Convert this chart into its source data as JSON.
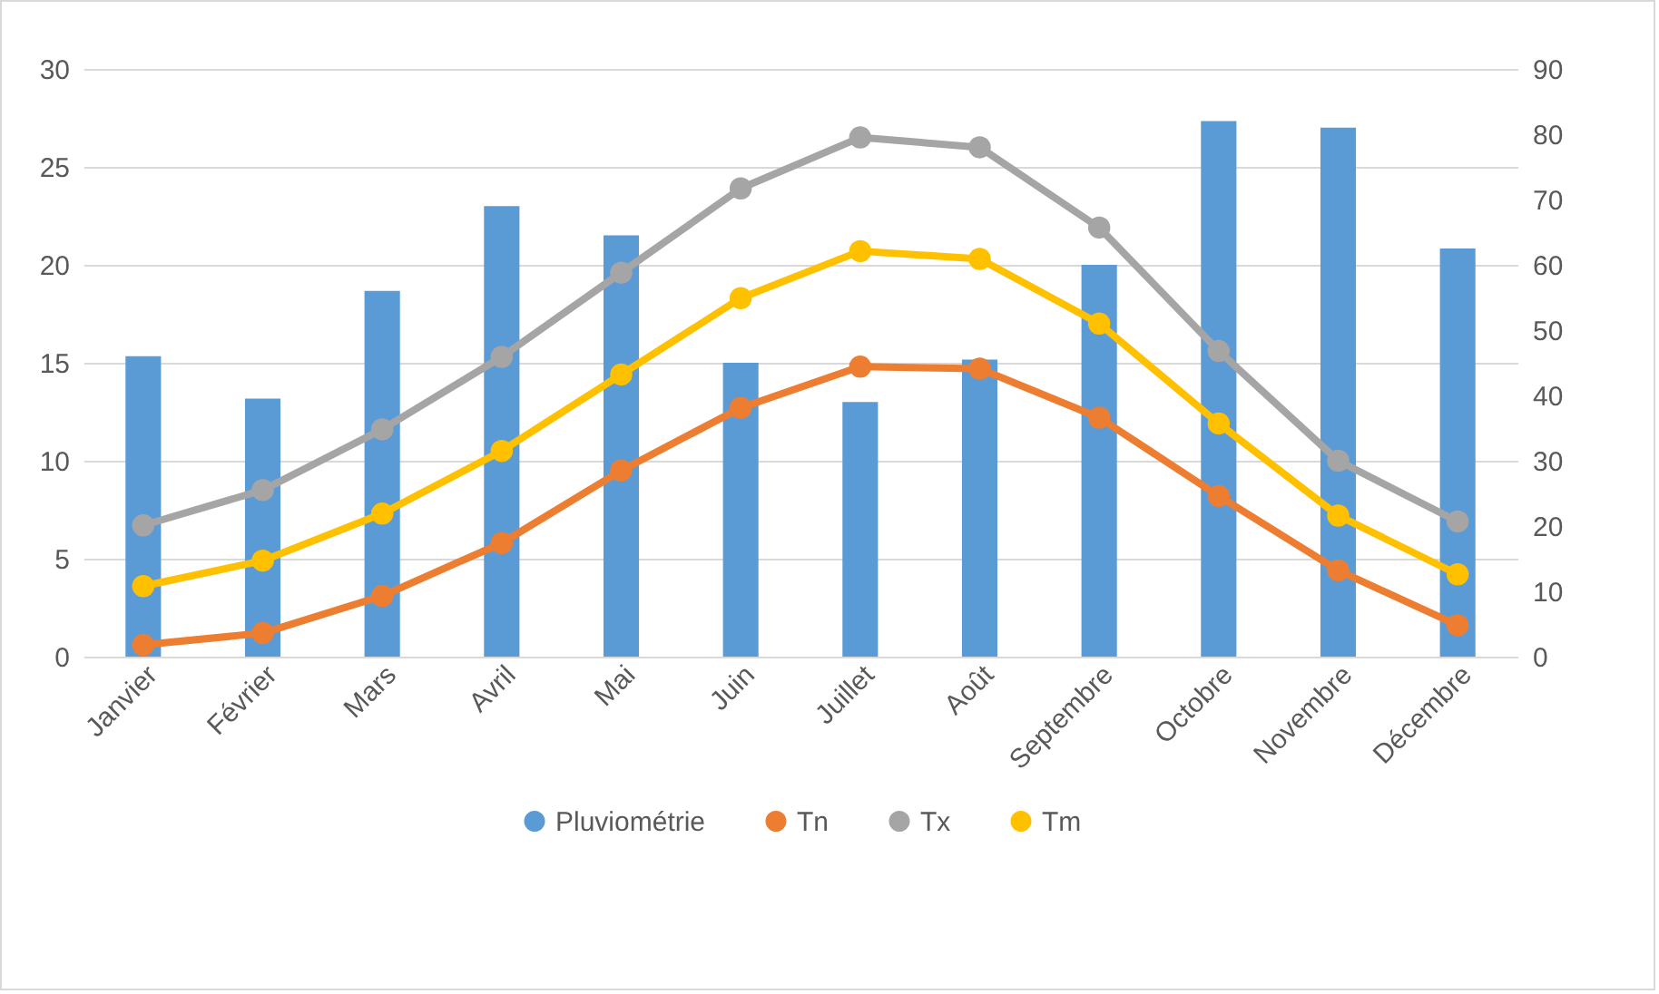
{
  "chart_data": {
    "type": "line",
    "categories": [
      "Janvier",
      "Février",
      "Mars",
      "Avril",
      "Mai",
      "Juin",
      "Juillet",
      "Août",
      "Septembre",
      "Octobre",
      "Novembre",
      "Décembre"
    ],
    "series": [
      {
        "name": "Pluviométrie",
        "type": "bar",
        "axis": "y2",
        "color": "#5b9bd5",
        "values": [
          46,
          39.5,
          56,
          69,
          64.5,
          45,
          39,
          45.5,
          60,
          82,
          81,
          62.5
        ]
      },
      {
        "name": "Tn",
        "color": "#ed7d31",
        "values": [
          0.6,
          1.2,
          3.1,
          5.8,
          9.5,
          12.7,
          14.8,
          14.7,
          12.2,
          8.2,
          4.4,
          1.6
        ]
      },
      {
        "name": "Tx",
        "color": "#a5a5a5",
        "values": [
          6.7,
          8.5,
          11.6,
          15.3,
          19.6,
          23.9,
          26.5,
          26,
          21.9,
          15.6,
          10,
          6.9
        ]
      },
      {
        "name": "Tm",
        "color": "#ffc000",
        "values": [
          3.6,
          4.9,
          7.3,
          10.5,
          14.4,
          18.3,
          20.7,
          20.3,
          17,
          11.9,
          7.2,
          4.2
        ]
      }
    ],
    "ylim": [
      0,
      30
    ],
    "yticks": [
      0,
      5,
      10,
      15,
      20,
      25,
      30
    ],
    "y2lim": [
      0,
      90
    ],
    "y2ticks": [
      0,
      10,
      20,
      30,
      40,
      50,
      60,
      70,
      80,
      90
    ],
    "grid": "y",
    "legend": "bottom",
    "marker": "circle",
    "line_style": "solid"
  }
}
